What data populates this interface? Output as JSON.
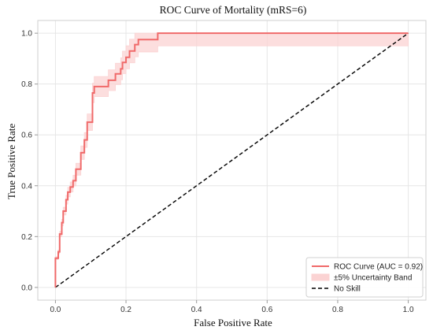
{
  "chart_data": {
    "type": "line",
    "title": "ROC Curve of Mortality (mRS=6)",
    "xlabel": "False Positive Rate",
    "ylabel": "True Positive Rate",
    "xlim": [
      -0.05,
      1.05
    ],
    "ylim": [
      -0.05,
      1.05
    ],
    "xticks": [
      "0.0",
      "0.2",
      "0.4",
      "0.6",
      "0.8",
      "1.0"
    ],
    "yticks": [
      "0.0",
      "0.2",
      "0.4",
      "0.6",
      "0.8",
      "1.0"
    ],
    "grid": true,
    "legend_position": "bottom-right",
    "band_fraction": 0.05,
    "colors": {
      "roc": "#f06a6a",
      "band": "#fbd3d3",
      "no_skill": "#000000"
    },
    "series": [
      {
        "name": "ROC Curve (AUC = 0.92)",
        "style": "step",
        "points": [
          [
            0.0,
            0.0
          ],
          [
            0.0,
            0.115
          ],
          [
            0.008,
            0.115
          ],
          [
            0.008,
            0.14
          ],
          [
            0.012,
            0.14
          ],
          [
            0.012,
            0.21
          ],
          [
            0.018,
            0.21
          ],
          [
            0.018,
            0.255
          ],
          [
            0.022,
            0.255
          ],
          [
            0.022,
            0.3
          ],
          [
            0.03,
            0.3
          ],
          [
            0.03,
            0.345
          ],
          [
            0.035,
            0.345
          ],
          [
            0.035,
            0.375
          ],
          [
            0.042,
            0.375
          ],
          [
            0.042,
            0.395
          ],
          [
            0.05,
            0.395
          ],
          [
            0.05,
            0.42
          ],
          [
            0.058,
            0.42
          ],
          [
            0.058,
            0.465
          ],
          [
            0.072,
            0.465
          ],
          [
            0.072,
            0.53
          ],
          [
            0.082,
            0.53
          ],
          [
            0.082,
            0.58
          ],
          [
            0.09,
            0.58
          ],
          [
            0.09,
            0.65
          ],
          [
            0.105,
            0.65
          ],
          [
            0.105,
            0.765
          ],
          [
            0.11,
            0.765
          ],
          [
            0.11,
            0.79
          ],
          [
            0.15,
            0.79
          ],
          [
            0.15,
            0.815
          ],
          [
            0.17,
            0.815
          ],
          [
            0.17,
            0.84
          ],
          [
            0.185,
            0.84
          ],
          [
            0.185,
            0.86
          ],
          [
            0.19,
            0.86
          ],
          [
            0.19,
            0.885
          ],
          [
            0.2,
            0.885
          ],
          [
            0.2,
            0.905
          ],
          [
            0.21,
            0.905
          ],
          [
            0.21,
            0.93
          ],
          [
            0.225,
            0.93
          ],
          [
            0.225,
            0.955
          ],
          [
            0.235,
            0.955
          ],
          [
            0.235,
            0.975
          ],
          [
            0.29,
            0.975
          ],
          [
            0.29,
            1.0
          ],
          [
            1.0,
            1.0
          ]
        ]
      },
      {
        "name": "No Skill",
        "style": "dashed",
        "points": [
          [
            0.0,
            0.0
          ],
          [
            1.0,
            1.0
          ]
        ]
      }
    ],
    "band": {
      "name": "±5% Uncertainty Band"
    }
  }
}
